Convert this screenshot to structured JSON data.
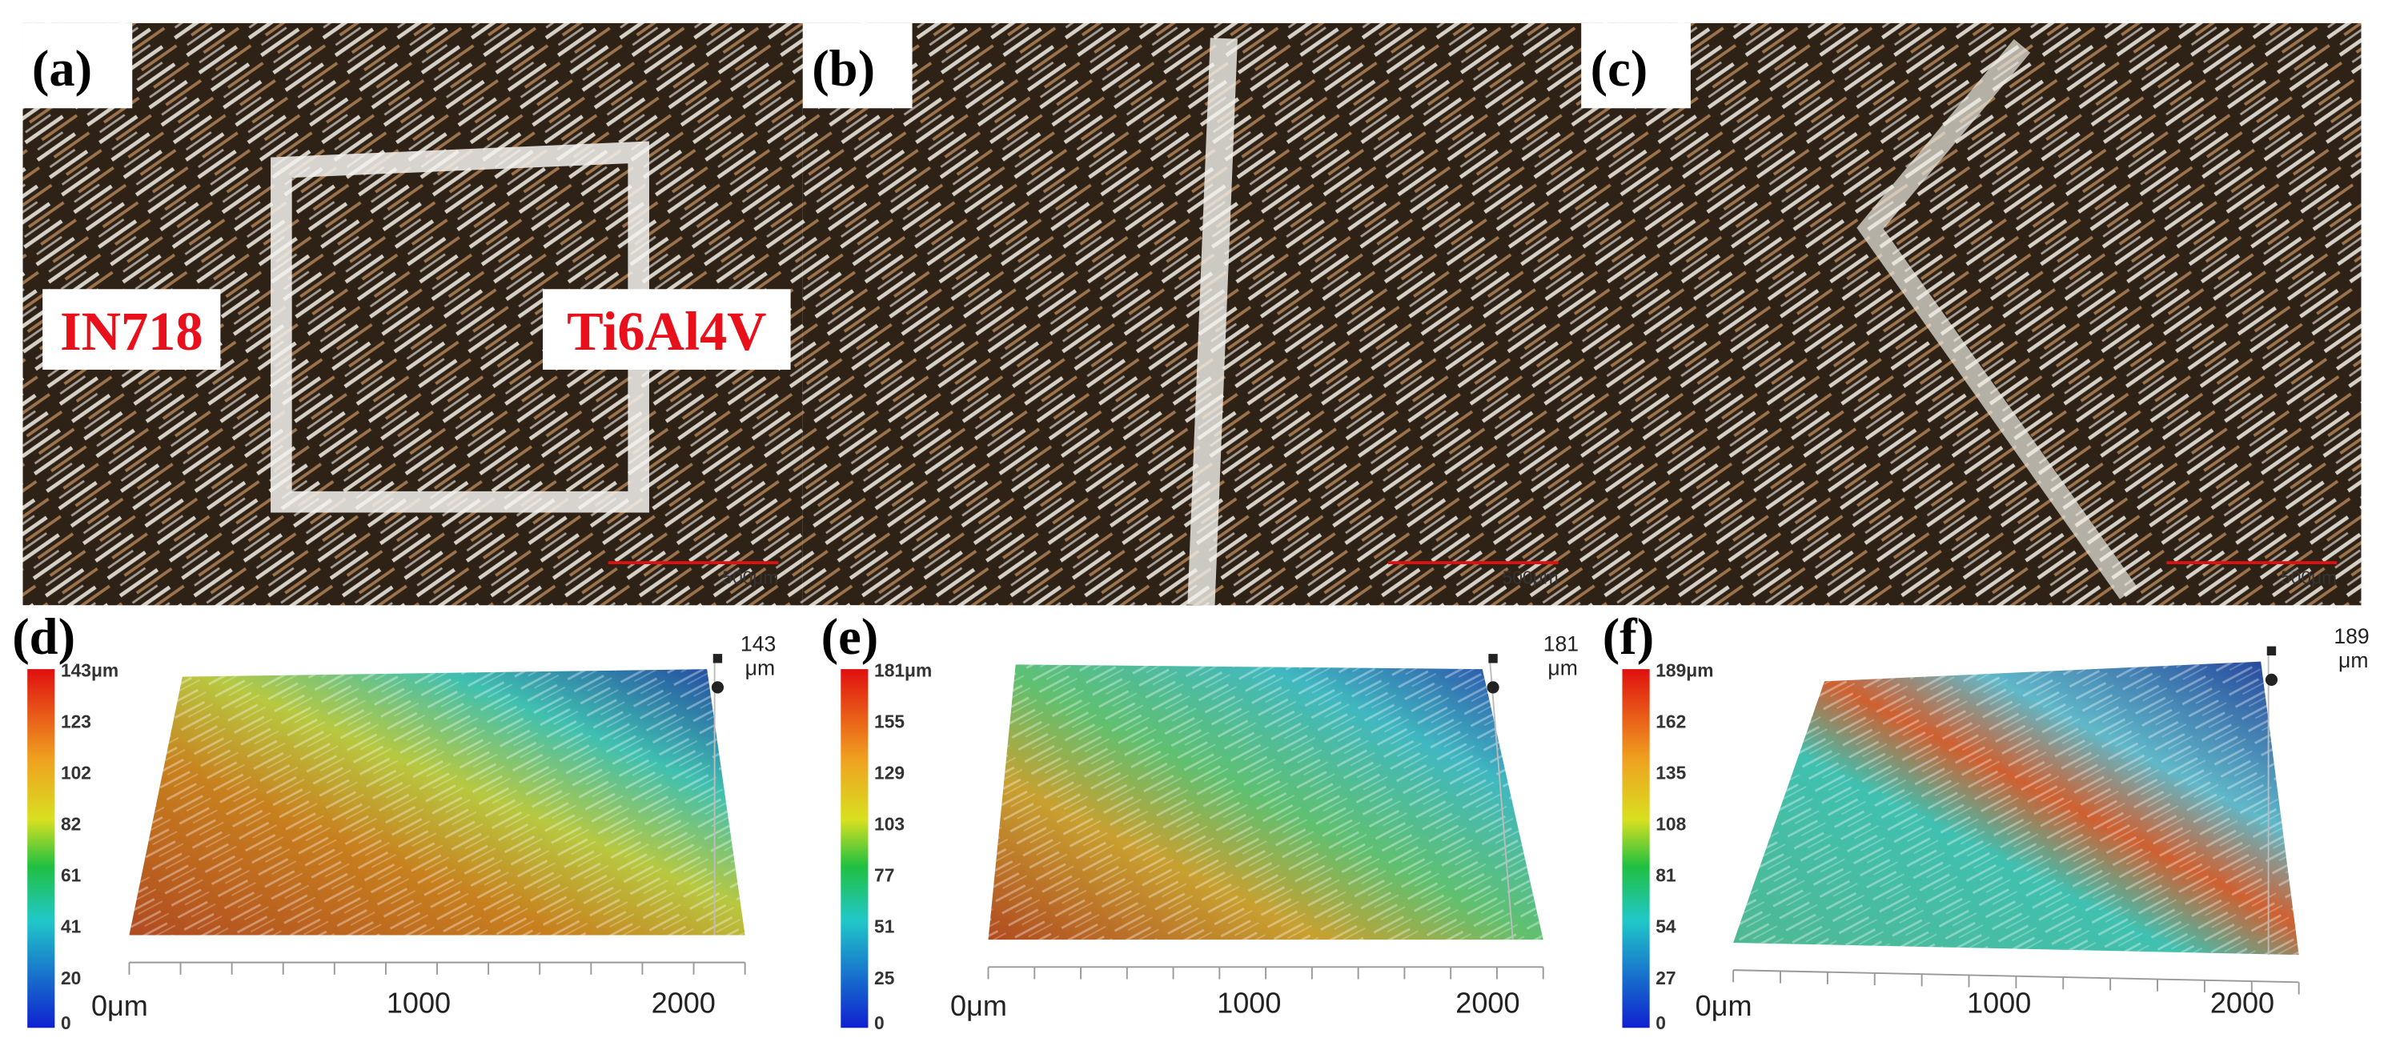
{
  "panels": [
    {
      "label": "(a)",
      "annotations": [
        "IN718",
        "Ti6Al4V"
      ],
      "scale_bar": "500μm"
    },
    {
      "label": "(b)",
      "scale_bar": "500μm"
    },
    {
      "label": "(c)",
      "scale_bar": "500μm"
    },
    {
      "label": "(d)",
      "colorbar": [
        "143μm",
        "123",
        "102",
        "82",
        "61",
        "41",
        "20",
        "0"
      ],
      "z_max": "143",
      "z_unit": "μm",
      "x_labels": [
        "0μm",
        "1000",
        "2000"
      ]
    },
    {
      "label": "(e)",
      "colorbar": [
        "181μm",
        "155",
        "129",
        "103",
        "77",
        "51",
        "25",
        "0"
      ],
      "z_max": "181",
      "z_unit": "μm",
      "x_labels": [
        "0μm",
        "1000",
        "2000"
      ]
    },
    {
      "label": "(f)",
      "colorbar": [
        "189μm",
        "162",
        "135",
        "108",
        "81",
        "54",
        "27",
        "0"
      ],
      "z_max": "189",
      "z_unit": "μm",
      "x_labels": [
        "0μm",
        "1000",
        "2000"
      ]
    }
  ]
}
